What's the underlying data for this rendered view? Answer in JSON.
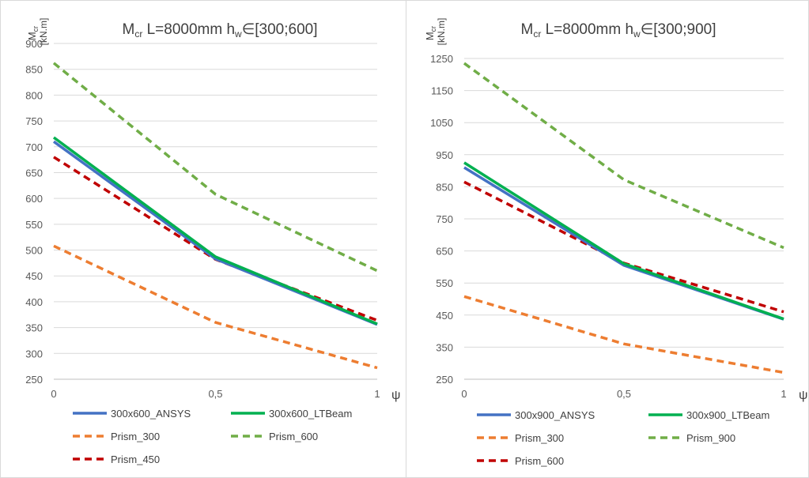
{
  "chart_data": [
    {
      "type": "line",
      "title": {
        "main": "M",
        "sub1": "cr",
        "mid": " L=8000mm h",
        "sub2": "w",
        "rest": "∈[300;600]"
      },
      "ylabel": {
        "main": "M",
        "sub": "cr",
        "unit": "[kN.m]"
      },
      "xlabel": "ψ",
      "x": [
        0,
        0.5,
        1
      ],
      "x_tick_labels": [
        "0",
        "0,5",
        "1"
      ],
      "ylim": [
        250,
        900
      ],
      "y_ticks": [
        250,
        300,
        350,
        400,
        450,
        500,
        550,
        600,
        650,
        700,
        750,
        800,
        850,
        900
      ],
      "grid": true,
      "legend_position": "bottom",
      "series": [
        {
          "name": "300x600_ANSYS",
          "values": [
            710,
            483,
            356
          ],
          "color": "#4472C4",
          "dash": "solid"
        },
        {
          "name": "300x600_LTBeam",
          "values": [
            718,
            487,
            357
          ],
          "color": "#00B050",
          "dash": "solid"
        },
        {
          "name": "Prism_300",
          "values": [
            508,
            360,
            272
          ],
          "color": "#ED7D31",
          "dash": "dashed"
        },
        {
          "name": "Prism_600",
          "values": [
            862,
            608,
            460
          ],
          "color": "#70AD47",
          "dash": "dashed"
        },
        {
          "name": "Prism_450",
          "values": [
            680,
            482,
            364
          ],
          "color": "#C00000",
          "dash": "dashed"
        }
      ]
    },
    {
      "type": "line",
      "title": {
        "main": "M",
        "sub1": "cr",
        "mid": " L=8000mm h",
        "sub2": "w",
        "rest": "∈[300;900]"
      },
      "ylabel": {
        "main": "M",
        "sub": "cr",
        "unit": "[kN.m]"
      },
      "xlabel": "ψ",
      "x": [
        0,
        0.5,
        1
      ],
      "x_tick_labels": [
        "0",
        "0,5",
        "1"
      ],
      "ylim": [
        250,
        1250
      ],
      "y_ticks": [
        250,
        350,
        450,
        550,
        650,
        750,
        850,
        950,
        1050,
        1150,
        1250
      ],
      "grid": true,
      "legend_position": "bottom",
      "series": [
        {
          "name": "300x900_ANSYS",
          "values": [
            910,
            605,
            437
          ],
          "color": "#4472C4",
          "dash": "solid"
        },
        {
          "name": "300x900_LTBeam",
          "values": [
            925,
            610,
            438
          ],
          "color": "#00B050",
          "dash": "solid"
        },
        {
          "name": "Prism_300",
          "values": [
            508,
            360,
            271
          ],
          "color": "#ED7D31",
          "dash": "dashed"
        },
        {
          "name": "Prism_900",
          "values": [
            1235,
            872,
            660
          ],
          "color": "#70AD47",
          "dash": "dashed"
        },
        {
          "name": "Prism_600",
          "values": [
            865,
            612,
            460
          ],
          "color": "#C00000",
          "dash": "dashed"
        }
      ]
    }
  ]
}
